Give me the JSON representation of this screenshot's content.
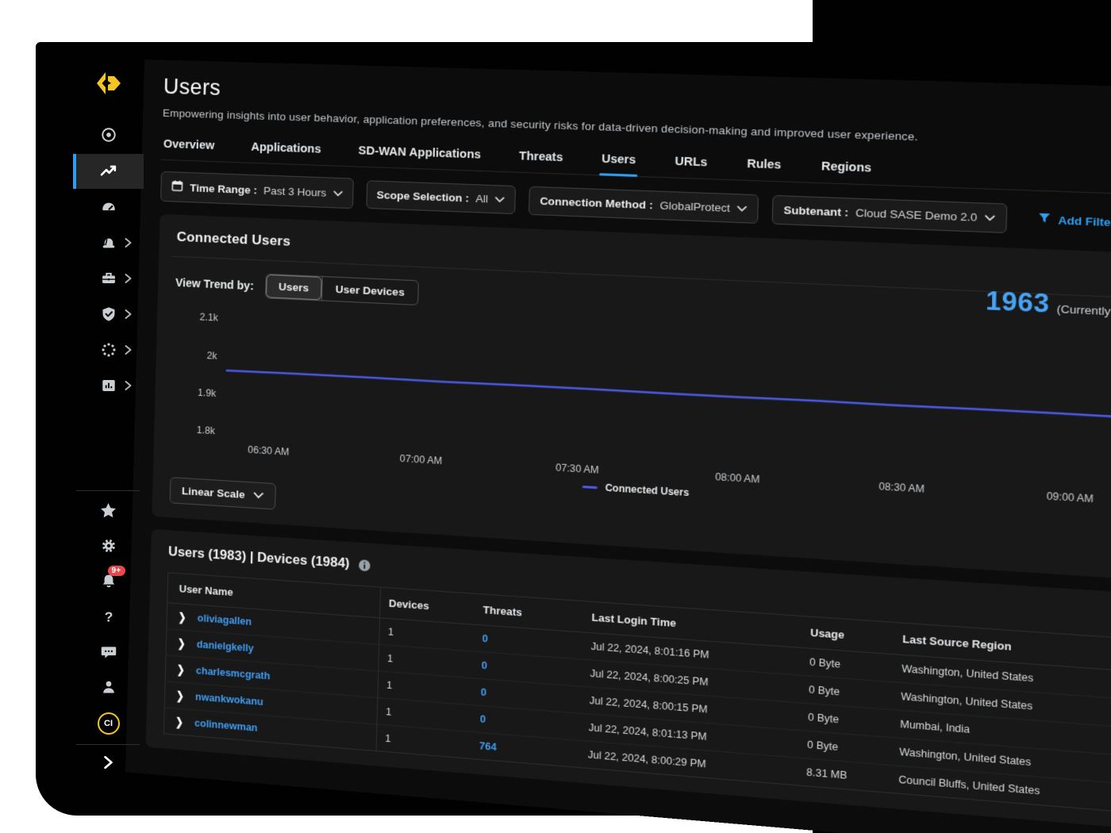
{
  "header": {
    "title": "Users",
    "description": "Empowering insights into user behavior, application preferences, and security risks for data-driven decision-making and improved user experience."
  },
  "tabs": [
    {
      "label": "Overview",
      "active": false
    },
    {
      "label": "Applications",
      "active": false
    },
    {
      "label": "SD-WAN Applications",
      "active": false
    },
    {
      "label": "Threats",
      "active": false
    },
    {
      "label": "Users",
      "active": true
    },
    {
      "label": "URLs",
      "active": false
    },
    {
      "label": "Rules",
      "active": false
    },
    {
      "label": "Regions",
      "active": false
    }
  ],
  "filters": {
    "pills": [
      {
        "icon": "calendar",
        "label": "Time Range",
        "separator": ":",
        "value": "Past 3 Hours"
      },
      {
        "icon": "",
        "label": "Scope Selection",
        "separator": ":",
        "value": "All"
      },
      {
        "icon": "",
        "label": "Connection Method",
        "separator": ":",
        "value": "GlobalProtect"
      },
      {
        "icon": "",
        "label": "Subtenant",
        "separator": ":",
        "value": "Cloud SASE Demo 2.0"
      }
    ],
    "add_filter": "Add Filter"
  },
  "connected_users_panel": {
    "title": "Connected Users",
    "count": "1963",
    "count_suffix": "(Currently Connected)",
    "view_trend_label": "View Trend by:",
    "trend_options": [
      {
        "label": "Users",
        "selected": true
      },
      {
        "label": "User Devices",
        "selected": false
      }
    ],
    "scale_button": "Linear Scale",
    "legend": "Connected Users"
  },
  "chart_data": {
    "type": "line",
    "title": "Connected Users trend",
    "x_labels": [
      "06:30 AM",
      "07:00 AM",
      "07:30 AM",
      "08:00 AM",
      "08:30 AM",
      "09:00 AM"
    ],
    "y_labels": [
      "2.1k",
      "2k",
      "1.9k",
      "1.8k"
    ],
    "ylim": [
      1800,
      2100
    ],
    "grid": false,
    "legend_position": "bottom",
    "series": [
      {
        "name": "Connected Users",
        "color": "#4b5ae2",
        "values": [
          1962,
          1963,
          1963,
          1962,
          1963,
          1963,
          1962,
          1962,
          1963,
          1962,
          1963,
          1963,
          1962
        ]
      }
    ]
  },
  "users_panel": {
    "title": "Users (1983) | Devices (1984)",
    "columns": [
      "User Name",
      "Devices",
      "Threats",
      "Last Login Time",
      "Usage",
      "Last Source Region"
    ],
    "rows": [
      {
        "user": "oliviagallen",
        "devices": "1",
        "threats": "0",
        "last_login": "Jul 22, 2024, 8:01:16 PM",
        "usage": "0 Byte",
        "region": "Washington, United States"
      },
      {
        "user": "danielgkelly",
        "devices": "1",
        "threats": "0",
        "last_login": "Jul 22, 2024, 8:00:25 PM",
        "usage": "0 Byte",
        "region": "Washington, United States"
      },
      {
        "user": "charlesmcgrath",
        "devices": "1",
        "threats": "0",
        "last_login": "Jul 22, 2024, 8:00:15 PM",
        "usage": "0 Byte",
        "region": "Mumbai, India"
      },
      {
        "user": "nwankwokanu",
        "devices": "1",
        "threats": "0",
        "last_login": "Jul 22, 2024, 8:01:13 PM",
        "usage": "0 Byte",
        "region": "Washington, United States"
      },
      {
        "user": "colinnewman",
        "devices": "1",
        "threats": "764",
        "last_login": "Jul 22, 2024, 8:00:29 PM",
        "usage": "8.31 MB",
        "region": "Council Bluffs, United States"
      }
    ]
  },
  "sidebar": {
    "notification_badge": "9+",
    "avatar_initials": "CI",
    "top_items": [
      {
        "icon": "radar-icon",
        "active": false,
        "submenu": false
      },
      {
        "icon": "activity-insights-icon",
        "active": true,
        "submenu": false
      },
      {
        "icon": "gauge-icon",
        "active": false,
        "submenu": false
      },
      {
        "icon": "siren-icon",
        "active": false,
        "submenu": true
      },
      {
        "icon": "toolbox-icon",
        "active": false,
        "submenu": true
      },
      {
        "icon": "shield-check-icon",
        "active": false,
        "submenu": true
      },
      {
        "icon": "dotted-circle-icon",
        "active": false,
        "submenu": true
      },
      {
        "icon": "report-icon",
        "active": false,
        "submenu": true
      }
    ],
    "bottom_items": [
      {
        "icon": "star-icon"
      },
      {
        "icon": "gear-icon"
      },
      {
        "icon": "bell-icon",
        "badge": "9+"
      },
      {
        "icon": "help-icon"
      },
      {
        "icon": "chat-icon"
      },
      {
        "icon": "person-icon"
      },
      {
        "icon": "avatar",
        "label": "CI"
      }
    ]
  },
  "colors": {
    "accent_blue": "#2f9ff2",
    "link_blue": "#3f9df1",
    "chart_line": "#4b5ae2",
    "brand_yellow": "#f4c425",
    "badge_red": "#e5484d"
  }
}
